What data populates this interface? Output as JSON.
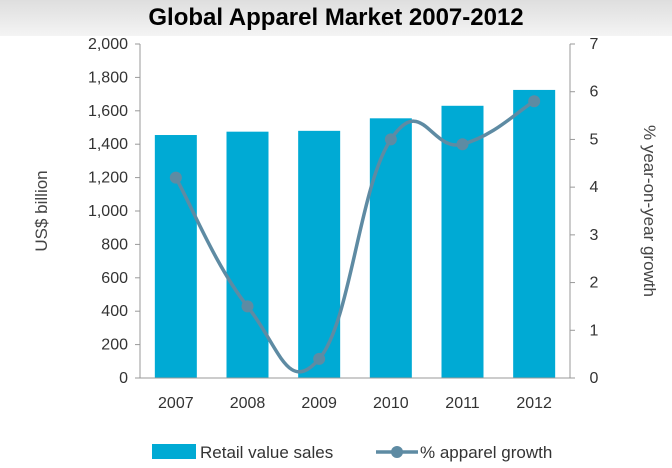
{
  "chart_data": {
    "type": "bar",
    "title": "Global Apparel Market 2007-2012",
    "categories": [
      "2007",
      "2008",
      "2009",
      "2010",
      "2011",
      "2012"
    ],
    "series": [
      {
        "name": "Retail value sales",
        "type": "bar",
        "axis": "left",
        "color": "#00aad4",
        "values": [
          1455,
          1475,
          1480,
          1555,
          1630,
          1725
        ]
      },
      {
        "name": "% apparel growth",
        "type": "line",
        "axis": "right",
        "color": "#5e8ba3",
        "values": [
          4.2,
          1.5,
          0.4,
          5.0,
          4.9,
          5.8
        ]
      }
    ],
    "ylabel": "US$ billion",
    "ylim": [
      0,
      2000
    ],
    "yticks": [
      "0",
      "200",
      "400",
      "600",
      "800",
      "1,000",
      "1,200",
      "1,400",
      "1,600",
      "1,800",
      "2,000"
    ],
    "y2label": "% year-on-year growth",
    "y2lim": [
      0,
      7
    ],
    "y2ticks": [
      "0",
      "1",
      "2",
      "3",
      "4",
      "5",
      "6",
      "7"
    ],
    "grid": false,
    "legend_position": "bottom"
  }
}
